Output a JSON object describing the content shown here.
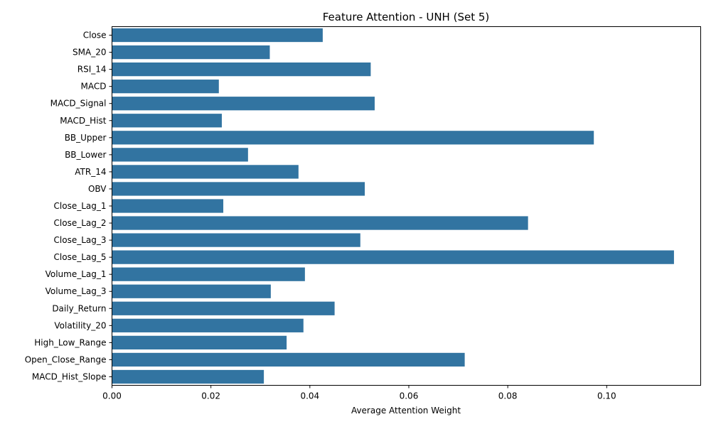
{
  "chart_data": {
    "type": "bar",
    "orientation": "horizontal",
    "title": "Feature Attention - UNH (Set 5)",
    "xlabel": "Average Attention Weight",
    "ylabel": "",
    "xlim": [
      0,
      0.119
    ],
    "xticks": [
      "0.00",
      "0.02",
      "0.04",
      "0.06",
      "0.08",
      "0.10"
    ],
    "grid": false,
    "bar_color": "#3274a1",
    "categories": [
      "Close",
      "SMA_20",
      "RSI_14",
      "MACD",
      "MACD_Signal",
      "MACD_Hist",
      "BB_Upper",
      "BB_Lower",
      "ATR_14",
      "OBV",
      "Close_Lag_1",
      "Close_Lag_2",
      "Close_Lag_3",
      "Close_Lag_5",
      "Volume_Lag_1",
      "Volume_Lag_3",
      "Daily_Return",
      "Volatility_20",
      "High_Low_Range",
      "Open_Close_Range",
      "MACD_Hist_Slope"
    ],
    "values": [
      0.0426,
      0.0319,
      0.0523,
      0.0216,
      0.0531,
      0.0222,
      0.0974,
      0.0275,
      0.0377,
      0.0511,
      0.0225,
      0.0841,
      0.0502,
      0.1136,
      0.039,
      0.0321,
      0.045,
      0.0387,
      0.0353,
      0.0713,
      0.0307
    ]
  }
}
